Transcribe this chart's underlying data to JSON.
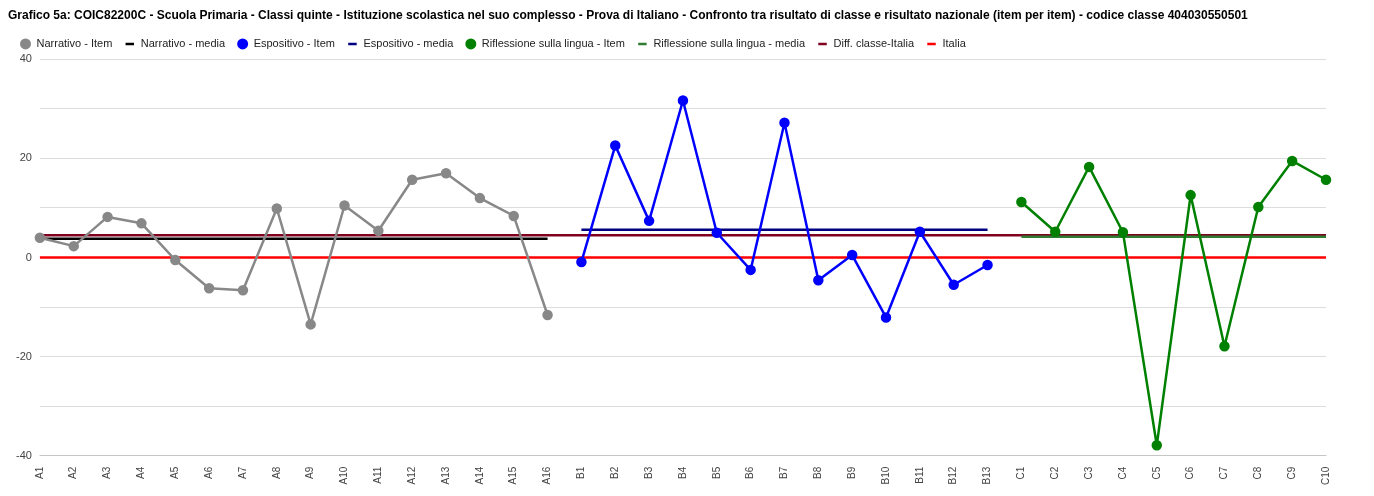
{
  "chart_data": {
    "type": "line",
    "title": "Grafico 5a: COIC82200C - Scuola Primaria - Classi quinte - Istituzione scolastica nel suo complesso - Prova di Italiano - Confronto tra risultato di classe e risultato nazionale (item per item) - codice classe 404030550501",
    "categories": [
      "A1",
      "A2",
      "A3",
      "A4",
      "A5",
      "A6",
      "A7",
      "A8",
      "A9",
      "A10",
      "A11",
      "A12",
      "A13",
      "A14",
      "A15",
      "A16",
      "B1",
      "B2",
      "B3",
      "B4",
      "B5",
      "B6",
      "B7",
      "B8",
      "B9",
      "B10",
      "B11",
      "B12",
      "B13",
      "C1",
      "C2",
      "C3",
      "C4",
      "C5",
      "C6",
      "C7",
      "C8",
      "C9",
      "C10"
    ],
    "series": [
      {
        "name": "Narrativo - Item",
        "color": "#888888",
        "marker": "circle",
        "values": [
          4,
          2.3,
          8.2,
          6.9,
          -0.5,
          -6.2,
          -6.6,
          9.9,
          -13.5,
          10.5,
          5.4,
          15.7,
          17,
          12,
          8.4,
          -11.6,
          null,
          null,
          null,
          null,
          null,
          null,
          null,
          null,
          null,
          null,
          null,
          null,
          null,
          null,
          null,
          null,
          null,
          null,
          null,
          null,
          null,
          null,
          null
        ]
      },
      {
        "name": "Narrativo - media",
        "color": "#000000",
        "marker": "none",
        "values": [
          3.8,
          3.8,
          3.8,
          3.8,
          3.8,
          3.8,
          3.8,
          3.8,
          3.8,
          3.8,
          3.8,
          3.8,
          3.8,
          3.8,
          3.8,
          3.8,
          null,
          null,
          null,
          null,
          null,
          null,
          null,
          null,
          null,
          null,
          null,
          null,
          null,
          null,
          null,
          null,
          null,
          null,
          null,
          null,
          null,
          null,
          null
        ]
      },
      {
        "name": "Espositivo - Item",
        "color": "#0000ff",
        "marker": "circle",
        "values": [
          null,
          null,
          null,
          null,
          null,
          null,
          null,
          null,
          null,
          null,
          null,
          null,
          null,
          null,
          null,
          null,
          -0.9,
          22.6,
          7.4,
          31.7,
          5,
          -2.5,
          27.2,
          -4.6,
          0.5,
          -12.1,
          5.2,
          -5.5,
          -1.5,
          null,
          null,
          null,
          null,
          null,
          null,
          null,
          null,
          null,
          null
        ]
      },
      {
        "name": "Espositivo - media",
        "color": "#000080",
        "marker": "none",
        "values": [
          null,
          null,
          null,
          null,
          null,
          null,
          null,
          null,
          null,
          null,
          null,
          null,
          null,
          null,
          null,
          null,
          5.6,
          5.6,
          5.6,
          5.6,
          5.6,
          5.6,
          5.6,
          5.6,
          5.6,
          5.6,
          5.6,
          5.6,
          5.6,
          null,
          null,
          null,
          null,
          null,
          null,
          null,
          null,
          null,
          null
        ]
      },
      {
        "name": "Riflessione sulla lingua - Item",
        "color": "#008000",
        "marker": "circle",
        "values": [
          null,
          null,
          null,
          null,
          null,
          null,
          null,
          null,
          null,
          null,
          null,
          null,
          null,
          null,
          null,
          null,
          null,
          null,
          null,
          null,
          null,
          null,
          null,
          null,
          null,
          null,
          null,
          null,
          null,
          11.2,
          5.2,
          18.3,
          5.1,
          -37.9,
          12.6,
          -17.9,
          10.2,
          19.5,
          15.7
        ]
      },
      {
        "name": "Riflessione sulla lingua - media",
        "color": "#2e7d32",
        "marker": "none",
        "values": [
          null,
          null,
          null,
          null,
          null,
          null,
          null,
          null,
          null,
          null,
          null,
          null,
          null,
          null,
          null,
          null,
          null,
          null,
          null,
          null,
          null,
          null,
          null,
          null,
          null,
          null,
          null,
          null,
          null,
          4.2,
          4.2,
          4.2,
          4.2,
          4.2,
          4.2,
          4.2,
          4.2,
          4.2,
          4.2
        ]
      },
      {
        "name": "Diff. classe-Italia",
        "color": "#800020",
        "marker": "none",
        "values": [
          4.5,
          4.5,
          4.5,
          4.5,
          4.5,
          4.5,
          4.5,
          4.5,
          4.5,
          4.5,
          4.5,
          4.5,
          4.5,
          4.5,
          4.5,
          4.5,
          4.5,
          4.5,
          4.5,
          4.5,
          4.5,
          4.5,
          4.5,
          4.5,
          4.5,
          4.5,
          4.5,
          4.5,
          4.5,
          4.5,
          4.5,
          4.5,
          4.5,
          4.5,
          4.5,
          4.5,
          4.5,
          4.5,
          4.5
        ]
      },
      {
        "name": "Italia",
        "color": "#ff0000",
        "marker": "none",
        "values": [
          0,
          0,
          0,
          0,
          0,
          0,
          0,
          0,
          0,
          0,
          0,
          0,
          0,
          0,
          0,
          0,
          0,
          0,
          0,
          0,
          0,
          0,
          0,
          0,
          0,
          0,
          0,
          0,
          0,
          0,
          0,
          0,
          0,
          0,
          0,
          0,
          0,
          0,
          0
        ]
      }
    ],
    "ylim": [
      -40,
      40
    ],
    "yticks": [
      -40,
      {
        "value": -30,
        "label": null
      },
      -20,
      {
        "value": -10,
        "label": null
      },
      0,
      {
        "value": 10,
        "label": null
      },
      20,
      {
        "value": 30,
        "label": null
      },
      40
    ],
    "grid": "y",
    "legend": "top left",
    "line_style": "solid"
  }
}
